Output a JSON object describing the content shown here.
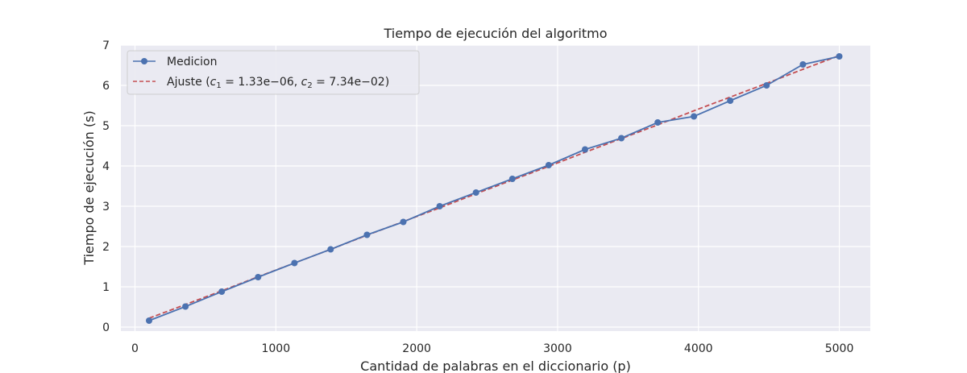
{
  "chart_data": {
    "type": "line",
    "title": "Tiempo de ejecución del algoritmo",
    "xlabel": "Cantidad de palabras en el diccionario (p)",
    "ylabel": "Tiempo de ejecución (s)",
    "xlim": [
      -100,
      5220
    ],
    "ylim": [
      -0.1,
      7.0
    ],
    "xticks": [
      0,
      1000,
      2000,
      3000,
      4000,
      5000
    ],
    "yticks": [
      0,
      1,
      2,
      3,
      4,
      5,
      6,
      7
    ],
    "grid": true,
    "legend_position": "top-left",
    "colors": {
      "background": "#eaeaf2",
      "grid": "#ffffff",
      "measurement": "#4c72b0",
      "fit": "#c44e52"
    },
    "series": [
      {
        "name": "Medicion",
        "style": "solid-with-markers",
        "x": [
          100,
          358,
          616,
          874,
          1132,
          1389,
          1647,
          1905,
          2163,
          2421,
          2679,
          2937,
          3195,
          3453,
          3711,
          3968,
          4226,
          4484,
          4742,
          5000
        ],
        "y": [
          0.16,
          0.51,
          0.88,
          1.24,
          1.59,
          1.93,
          2.29,
          2.61,
          3.0,
          3.34,
          3.68,
          4.02,
          4.41,
          4.69,
          5.08,
          5.23,
          5.62,
          6.0,
          6.52,
          6.72
        ]
      },
      {
        "name": "Ajuste",
        "style": "dashed",
        "fit": {
          "c1": "1.33e−06",
          "c2": "7.34e−02"
        },
        "x": [
          100,
          358,
          616,
          874,
          1132,
          1389,
          1647,
          1905,
          2163,
          2421,
          2679,
          2937,
          3195,
          3453,
          3711,
          3968,
          4226,
          4484,
          4742,
          5000
        ],
        "y": [
          0.22,
          0.56,
          0.9,
          1.25,
          1.59,
          1.93,
          2.28,
          2.62,
          2.96,
          3.31,
          3.65,
          3.99,
          4.34,
          4.68,
          5.02,
          5.37,
          5.71,
          6.05,
          6.4,
          6.74
        ]
      }
    ]
  }
}
